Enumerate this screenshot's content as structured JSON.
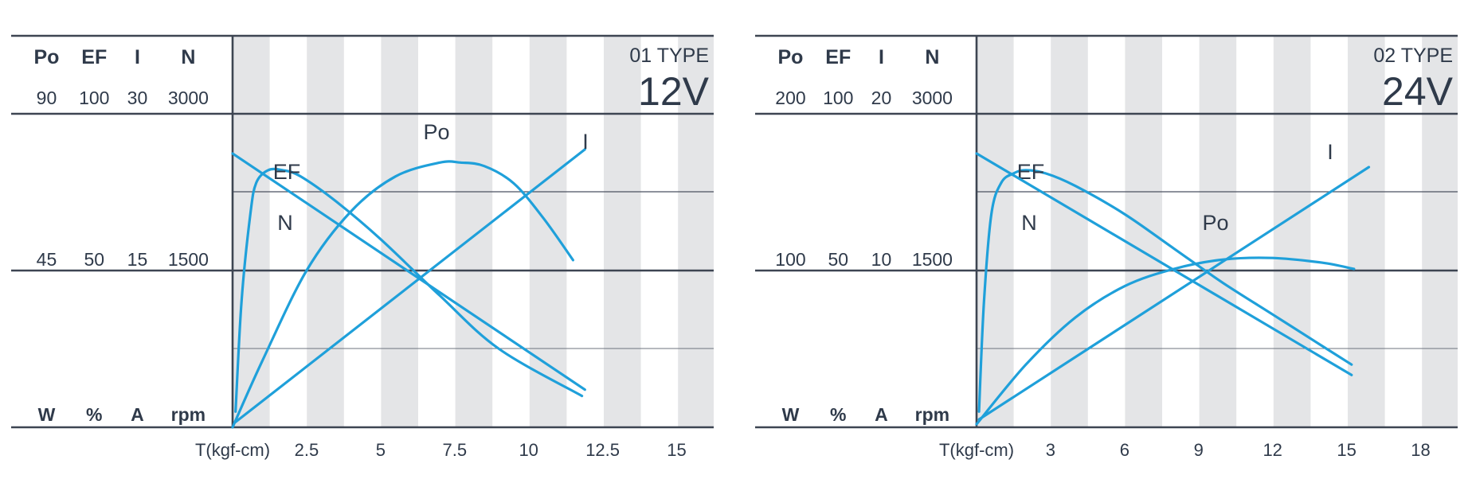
{
  "chart_data": [
    {
      "type": "line",
      "title_line1": "01 TYPE",
      "title_line2": "12V",
      "xlabel": "T(kgf-cm)",
      "xticks": [
        "2.5",
        "5",
        "7.5",
        "10",
        "12.5",
        "15"
      ],
      "xtick_values": [
        2.5,
        5,
        7.5,
        10,
        12.5,
        15
      ],
      "xlim": [
        0,
        16.25
      ],
      "axes": [
        {
          "name": "Po",
          "max": "90",
          "mid": "45",
          "unit": "W"
        },
        {
          "name": "EF",
          "max": "100",
          "mid": "50",
          "unit": "%"
        },
        {
          "name": "I",
          "max": "30",
          "mid": "15",
          "unit": "A"
        },
        {
          "name": "N",
          "max": "3000",
          "mid": "1500",
          "unit": "rpm"
        }
      ],
      "grid": "alternating vertical bands",
      "series": [
        {
          "name": "EF",
          "scale_max": 100,
          "color": "#1fa0da",
          "x": [
            0.1,
            0.3,
            0.6,
            0.8,
            1.2,
            1.7,
            2.3,
            3.5,
            5,
            7,
            9,
            11.8
          ],
          "y": [
            5,
            40,
            68,
            78,
            82,
            82,
            80,
            72,
            60,
            42,
            25,
            10
          ]
        },
        {
          "name": "N",
          "scale_max": 3000,
          "color": "#1fa0da",
          "x": [
            0,
            11.9
          ],
          "y": [
            2620,
            360
          ]
        },
        {
          "name": "Po",
          "scale_max": 90,
          "color": "#1fa0da",
          "x": [
            0,
            1,
            2.5,
            4,
            5.5,
            7,
            7.7,
            8.5,
            9.5,
            10.5,
            11.5
          ],
          "y": [
            0,
            19,
            45,
            62,
            72,
            76,
            76,
            75,
            70,
            60,
            48
          ]
        },
        {
          "name": "I",
          "scale_max": 30,
          "color": "#1fa0da",
          "x": [
            0.1,
            11.9
          ],
          "y": [
            0.5,
            26.6
          ]
        }
      ]
    },
    {
      "type": "line",
      "title_line1": "02 TYPE",
      "title_line2": "24V",
      "xlabel": "T(kgf-cm)",
      "xticks": [
        "3",
        "6",
        "9",
        "12",
        "15",
        "18"
      ],
      "xtick_values": [
        3,
        6,
        9,
        12,
        15,
        18
      ],
      "xlim": [
        0,
        19.5
      ],
      "axes": [
        {
          "name": "Po",
          "max": "200",
          "mid": "100",
          "unit": "W"
        },
        {
          "name": "EF",
          "max": "100",
          "mid": "50",
          "unit": "%"
        },
        {
          "name": "I",
          "max": "20",
          "mid": "10",
          "unit": "A"
        },
        {
          "name": "N",
          "max": "3000",
          "mid": "1500",
          "unit": "rpm"
        }
      ],
      "grid": "alternating vertical bands",
      "series": [
        {
          "name": "EF",
          "scale_max": 100,
          "color": "#1fa0da",
          "x": [
            0.1,
            0.3,
            0.6,
            1,
            1.5,
            2,
            2.8,
            4,
            6,
            8,
            10,
            12,
            14,
            15.2
          ],
          "y": [
            5,
            40,
            68,
            78,
            81,
            82,
            81,
            77,
            68,
            57,
            46,
            36,
            26,
            20
          ]
        },
        {
          "name": "N",
          "scale_max": 3000,
          "color": "#1fa0da",
          "x": [
            0,
            15.2
          ],
          "y": [
            2620,
            500
          ]
        },
        {
          "name": "Po",
          "scale_max": 200,
          "color": "#1fa0da",
          "x": [
            0,
            2,
            4,
            6,
            8,
            10,
            12,
            14,
            15.3
          ],
          "y": [
            2,
            40,
            70,
            90,
            101,
            107,
            108,
            105,
            101
          ]
        },
        {
          "name": "I",
          "scale_max": 20,
          "color": "#1fa0da",
          "x": [
            0.1,
            15.9
          ],
          "y": [
            0.5,
            16.6
          ]
        }
      ]
    }
  ]
}
